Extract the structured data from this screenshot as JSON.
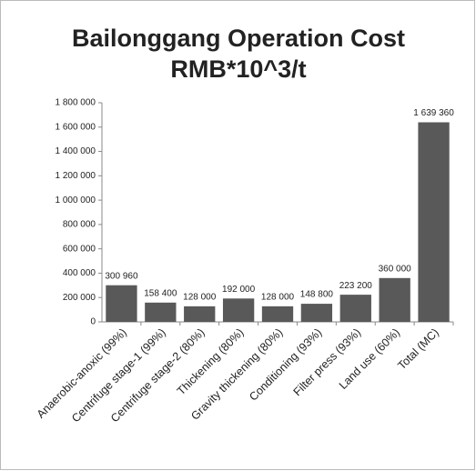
{
  "chart_data": {
    "type": "bar",
    "title": [
      "Bailonggang Operation Cost",
      "RMB*10^3/t"
    ],
    "categories": [
      "Anaerobic-anoxic (99%)",
      "Centrifuge stage-1 (99%)",
      "Centrifuge stage-2 (80%)",
      "Thickening (80%)",
      "Gravity thickening (80%)",
      "Conditioning (93%)",
      "Filter press (93%)",
      "Land use (60%)",
      "Total (MC)"
    ],
    "values": [
      300960,
      158400,
      128000,
      192000,
      128000,
      148800,
      223200,
      360000,
      1639360
    ],
    "value_labels": [
      "300 960",
      "158 400",
      "128 000",
      "192 000",
      "128 000",
      "148 800",
      "223 200",
      "360 000",
      "1 639 360"
    ],
    "color": "#595959",
    "ylim": [
      0,
      1800000
    ],
    "yticks": [
      0,
      {
        "value": 200000,
        "label": "200 000"
      },
      {
        "value": 400000,
        "label": "400 000"
      },
      {
        "value": 600000,
        "label": "600 000"
      },
      {
        "value": 800000,
        "label": "800 000"
      },
      {
        "value": 1000000,
        "label": "1 000 000"
      },
      {
        "value": 1200000,
        "label": "1 200 000"
      },
      {
        "value": 1400000,
        "label": "1 400 000"
      },
      {
        "value": 1600000,
        "label": "1 600 000"
      },
      {
        "value": 1800000,
        "label": "1 800 000"
      }
    ],
    "grid": false
  }
}
